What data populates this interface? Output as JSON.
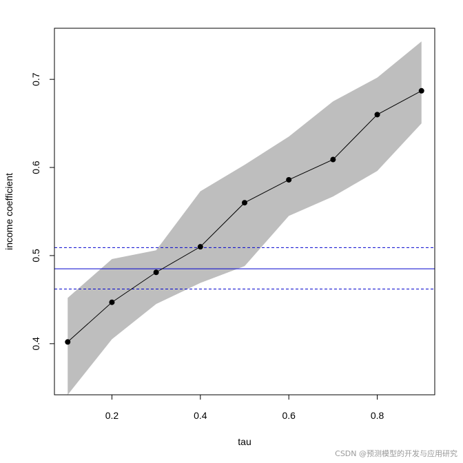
{
  "chart_data": {
    "type": "line",
    "title": "",
    "xlabel": "tau",
    "ylabel": "income coefficient",
    "xlim": [
      0.07,
      0.93
    ],
    "ylim": [
      0.342,
      0.758
    ],
    "x_ticks": [
      "0.2",
      "0.4",
      "0.6",
      "0.8"
    ],
    "x_tick_values": [
      0.2,
      0.4,
      0.6,
      0.8
    ],
    "y_ticks": [
      "0.4",
      "0.5",
      "0.6",
      "0.7"
    ],
    "y_tick_values": [
      0.4,
      0.5,
      0.6,
      0.7
    ],
    "x": [
      0.1,
      0.2,
      0.3,
      0.4,
      0.5,
      0.6,
      0.7,
      0.8,
      0.9
    ],
    "series": [
      {
        "values": [
          0.402,
          0.447,
          0.481,
          0.51,
          0.56,
          0.586,
          0.609,
          0.66,
          0.687
        ]
      }
    ],
    "confidence_band": {
      "lower": [
        0.342,
        0.405,
        0.445,
        0.469,
        0.488,
        0.545,
        0.567,
        0.596,
        0.65
      ],
      "upper": [
        0.452,
        0.496,
        0.506,
        0.573,
        0.603,
        0.635,
        0.675,
        0.702,
        0.743
      ]
    },
    "reference_lines": {
      "estimate": 0.485,
      "lower": 0.462,
      "upper": 0.509
    },
    "grid": false,
    "legend": "none",
    "colors": {
      "band": "#bebebe",
      "line": "#000000",
      "points": "#000000",
      "reference": "#0000cd"
    }
  },
  "watermark": "CSDN @预测模型的开发与应用研究"
}
